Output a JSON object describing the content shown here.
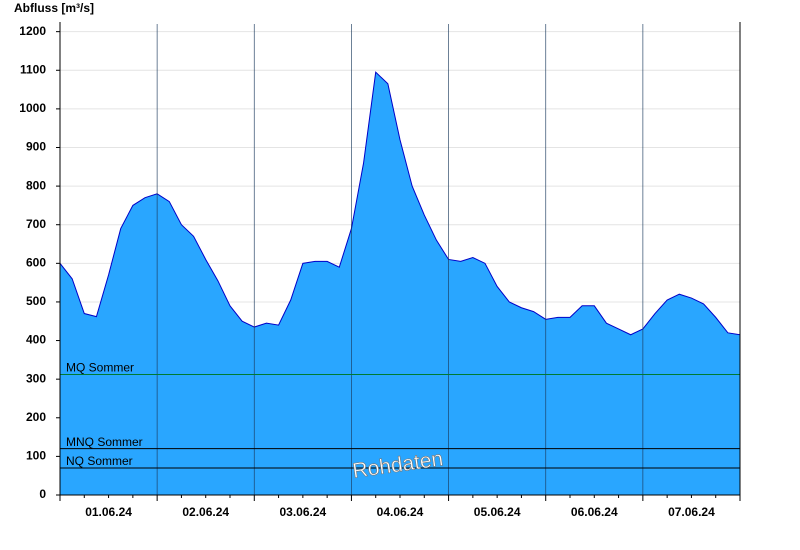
{
  "chart_data": {
    "type": "area",
    "y_axis_label": "Abfluss [m³/s]",
    "categories": [
      null,
      null,
      null,
      null,
      "01.06.24",
      null,
      null,
      null,
      null,
      null,
      null,
      null,
      "02.06.24",
      null,
      null,
      null,
      null,
      null,
      null,
      null,
      "03.06.24",
      null,
      null,
      null,
      null,
      null,
      null,
      null,
      "04.06.24",
      null,
      null,
      null,
      null,
      null,
      null,
      null,
      "05.06.24",
      null,
      null,
      null,
      null,
      null,
      null,
      null,
      "06.06.24",
      null,
      null,
      null,
      null,
      null,
      null,
      null,
      "07.06.24",
      null,
      null,
      null,
      null
    ],
    "values": [
      600,
      560,
      470,
      462,
      570,
      690,
      750,
      770,
      780,
      760,
      700,
      670,
      610,
      555,
      490,
      450,
      435,
      445,
      440,
      505,
      600,
      605,
      605,
      590,
      690,
      860,
      1095,
      1065,
      920,
      800,
      725,
      660,
      610,
      605,
      615,
      600,
      540,
      500,
      485,
      475,
      455,
      460,
      460,
      490,
      490,
      445,
      430,
      415,
      430,
      470,
      505,
      520,
      510,
      495,
      460,
      420,
      415
    ],
    "color": "#29a6ff",
    "line_color": "#0000c8",
    "ylim": [
      0,
      1225
    ],
    "yticks": [
      0,
      100,
      200,
      300,
      400,
      500,
      600,
      700,
      800,
      900,
      1000,
      1100,
      1200
    ],
    "grid": true,
    "reference_lines": [
      {
        "label": "MQ Sommer",
        "value": 312,
        "color": "#007a33"
      },
      {
        "label": "MNQ Sommer",
        "value": 120,
        "color": "#000000"
      },
      {
        "label": "NQ Sommer",
        "value": 70,
        "color": "#000000"
      }
    ],
    "annotation": "Rohdaten"
  }
}
